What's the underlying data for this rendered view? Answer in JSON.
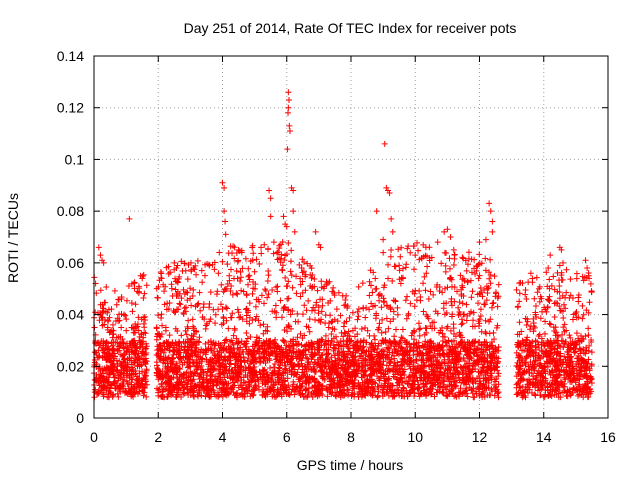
{
  "chart_data": {
    "type": "scatter",
    "title": "Day 251 of 2014, Rate Of TEC Index for receiver pots",
    "xlabel": "GPS time / hours",
    "ylabel": "ROTI / TECUs",
    "xlim": [
      0,
      16
    ],
    "ylim": [
      0,
      0.14
    ],
    "xticks": [
      0,
      2,
      4,
      6,
      8,
      10,
      12,
      14,
      16
    ],
    "yticks": [
      0,
      0.02,
      0.04,
      0.06,
      0.08,
      0.1,
      0.12,
      0.14
    ],
    "xtick_labels": [
      "0",
      "2",
      "4",
      "6",
      "8",
      "10",
      "12",
      "14",
      "16"
    ],
    "ytick_labels": [
      "0",
      "0.02",
      "0.04",
      "0.06",
      "0.08",
      "0.1",
      "0.12",
      "0.14"
    ],
    "grid": true,
    "marker": "+",
    "color": "#ff0000",
    "data_gaps_hours": [
      [
        1.65,
        1.95
      ],
      [
        12.6,
        13.15
      ]
    ],
    "envelope": [
      {
        "x": 0.0,
        "upper": 0.045
      },
      {
        "x": 0.5,
        "upper": 0.042
      },
      {
        "x": 1.0,
        "upper": 0.04
      },
      {
        "x": 1.6,
        "upper": 0.045
      },
      {
        "x": 2.0,
        "upper": 0.046
      },
      {
        "x": 3.0,
        "upper": 0.05
      },
      {
        "x": 4.0,
        "upper": 0.055
      },
      {
        "x": 5.0,
        "upper": 0.056
      },
      {
        "x": 6.0,
        "upper": 0.058
      },
      {
        "x": 7.0,
        "upper": 0.044
      },
      {
        "x": 8.0,
        "upper": 0.035
      },
      {
        "x": 9.0,
        "upper": 0.052
      },
      {
        "x": 10.0,
        "upper": 0.056
      },
      {
        "x": 11.0,
        "upper": 0.054
      },
      {
        "x": 12.0,
        "upper": 0.052
      },
      {
        "x": 12.6,
        "upper": 0.048
      },
      {
        "x": 13.2,
        "upper": 0.04
      },
      {
        "x": 14.0,
        "upper": 0.046
      },
      {
        "x": 15.0,
        "upper": 0.048
      },
      {
        "x": 15.5,
        "upper": 0.046
      }
    ],
    "outliers": [
      {
        "x": 0.05,
        "y": 0.052
      },
      {
        "x": 0.15,
        "y": 0.066
      },
      {
        "x": 0.2,
        "y": 0.063
      },
      {
        "x": 0.25,
        "y": 0.061
      },
      {
        "x": 0.3,
        "y": 0.06
      },
      {
        "x": 1.1,
        "y": 0.077
      },
      {
        "x": 1.45,
        "y": 0.055
      },
      {
        "x": 1.5,
        "y": 0.054
      },
      {
        "x": 2.5,
        "y": 0.06
      },
      {
        "x": 2.6,
        "y": 0.059
      },
      {
        "x": 3.1,
        "y": 0.058
      },
      {
        "x": 3.6,
        "y": 0.059
      },
      {
        "x": 3.9,
        "y": 0.064
      },
      {
        "x": 4.0,
        "y": 0.091
      },
      {
        "x": 4.05,
        "y": 0.089
      },
      {
        "x": 4.05,
        "y": 0.08
      },
      {
        "x": 4.08,
        "y": 0.076
      },
      {
        "x": 4.1,
        "y": 0.071
      },
      {
        "x": 4.5,
        "y": 0.065
      },
      {
        "x": 4.6,
        "y": 0.064
      },
      {
        "x": 5.2,
        "y": 0.066
      },
      {
        "x": 5.3,
        "y": 0.067
      },
      {
        "x": 5.45,
        "y": 0.088
      },
      {
        "x": 5.5,
        "y": 0.085
      },
      {
        "x": 5.5,
        "y": 0.078
      },
      {
        "x": 5.6,
        "y": 0.068
      },
      {
        "x": 5.9,
        "y": 0.078
      },
      {
        "x": 5.95,
        "y": 0.075
      },
      {
        "x": 6.0,
        "y": 0.074
      },
      {
        "x": 6.02,
        "y": 0.104
      },
      {
        "x": 6.04,
        "y": 0.118
      },
      {
        "x": 6.05,
        "y": 0.12
      },
      {
        "x": 6.05,
        "y": 0.126
      },
      {
        "x": 6.07,
        "y": 0.123
      },
      {
        "x": 6.08,
        "y": 0.113
      },
      {
        "x": 6.1,
        "y": 0.111
      },
      {
        "x": 6.15,
        "y": 0.089
      },
      {
        "x": 6.2,
        "y": 0.088
      },
      {
        "x": 6.2,
        "y": 0.08
      },
      {
        "x": 6.25,
        "y": 0.072
      },
      {
        "x": 6.9,
        "y": 0.072
      },
      {
        "x": 7.0,
        "y": 0.067
      },
      {
        "x": 7.05,
        "y": 0.066
      },
      {
        "x": 8.8,
        "y": 0.08
      },
      {
        "x": 9.05,
        "y": 0.106
      },
      {
        "x": 9.1,
        "y": 0.089
      },
      {
        "x": 9.15,
        "y": 0.088
      },
      {
        "x": 9.2,
        "y": 0.087
      },
      {
        "x": 9.25,
        "y": 0.077
      },
      {
        "x": 9.3,
        "y": 0.072
      },
      {
        "x": 9.0,
        "y": 0.069
      },
      {
        "x": 10.0,
        "y": 0.063
      },
      {
        "x": 10.7,
        "y": 0.068
      },
      {
        "x": 10.9,
        "y": 0.072
      },
      {
        "x": 11.0,
        "y": 0.073
      },
      {
        "x": 11.1,
        "y": 0.07
      },
      {
        "x": 11.2,
        "y": 0.065
      },
      {
        "x": 12.0,
        "y": 0.068
      },
      {
        "x": 12.2,
        "y": 0.069
      },
      {
        "x": 12.3,
        "y": 0.083
      },
      {
        "x": 12.35,
        "y": 0.08
      },
      {
        "x": 12.4,
        "y": 0.076
      },
      {
        "x": 12.4,
        "y": 0.072
      },
      {
        "x": 13.6,
        "y": 0.056
      },
      {
        "x": 14.2,
        "y": 0.063
      },
      {
        "x": 14.5,
        "y": 0.066
      },
      {
        "x": 14.55,
        "y": 0.065
      },
      {
        "x": 14.6,
        "y": 0.06
      },
      {
        "x": 15.3,
        "y": 0.061
      },
      {
        "x": 15.35,
        "y": 0.058
      },
      {
        "x": 15.4,
        "y": 0.055
      }
    ]
  }
}
